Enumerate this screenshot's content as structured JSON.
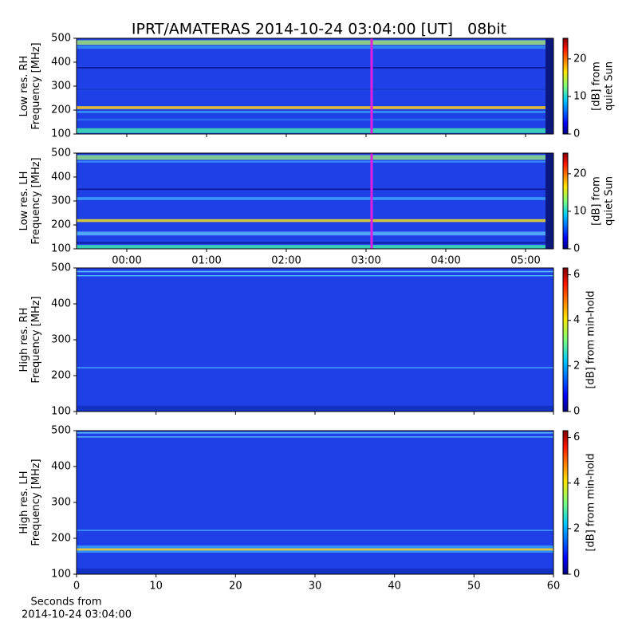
{
  "chart_data": [
    {
      "type": "heatmap",
      "title": "IPRT/AMATERAS 2014-10-24 03:04:00 [UT]   08bit",
      "ylabel": [
        "Low res. RH",
        "Frequency [MHz]"
      ],
      "xlim": [
        -0.63,
        5.35
      ],
      "xticks": [
        0,
        1,
        2,
        3,
        4,
        5
      ],
      "xtick_labels": false,
      "ylim": [
        100,
        500
      ],
      "yticks": [
        100,
        200,
        300,
        400,
        500
      ],
      "cursor_x": 3.07,
      "cursor_color": "#e020e0",
      "colorbar": {
        "label": [
          "[dB] from",
          "quiet Sun"
        ],
        "clim": [
          0,
          25.5
        ],
        "ticks": [
          0,
          10,
          20
        ]
      }
    },
    {
      "type": "heatmap",
      "ylabel": [
        "Low res. LH",
        "Frequency [MHz]"
      ],
      "xlim": [
        -0.63,
        5.35
      ],
      "xticks": [
        {
          "value": 0,
          "label": "00:00"
        },
        {
          "value": 1,
          "label": "01:00"
        },
        {
          "value": 2,
          "label": "02:00"
        },
        {
          "value": 3,
          "label": "03:00"
        },
        {
          "value": 4,
          "label": "04:00"
        },
        {
          "value": 5,
          "label": "05:00"
        }
      ],
      "xtick_labels": true,
      "ylim": [
        100,
        500
      ],
      "yticks": [
        100,
        200,
        300,
        400,
        500
      ],
      "cursor_x": 3.07,
      "cursor_color": "#e020e0",
      "colorbar": {
        "label": [
          "[dB] from",
          "quiet Sun"
        ],
        "clim": [
          0,
          25.5
        ],
        "ticks": [
          0,
          10,
          20
        ]
      }
    },
    {
      "type": "heatmap",
      "ylabel": [
        "High res. RH",
        "Frequency [MHz]"
      ],
      "xlim": [
        0,
        60
      ],
      "xticks": [
        0,
        10,
        20,
        30,
        40,
        50,
        60
      ],
      "xtick_labels": false,
      "ylim": [
        100,
        500
      ],
      "yticks": [
        100,
        200,
        300,
        400,
        500
      ],
      "colorbar": {
        "label": [
          "[dB] from min-hold"
        ],
        "clim": [
          0,
          6.3
        ],
        "ticks": [
          0,
          2,
          4,
          6
        ]
      }
    },
    {
      "type": "heatmap",
      "ylabel": [
        "High res. LH",
        "Frequency [MHz]"
      ],
      "xlabel": [
        "Seconds from",
        "2014-10-24 03:04:00"
      ],
      "xlim": [
        0,
        60
      ],
      "xticks": [
        0,
        10,
        20,
        30,
        40,
        50,
        60
      ],
      "xtick_labels": true,
      "ylim": [
        100,
        500
      ],
      "yticks": [
        100,
        200,
        300,
        400,
        500
      ],
      "colorbar": {
        "label": [
          "[dB] from min-hold"
        ],
        "clim": [
          0,
          6.3
        ],
        "ticks": [
          0,
          2,
          4,
          6
        ]
      }
    }
  ]
}
